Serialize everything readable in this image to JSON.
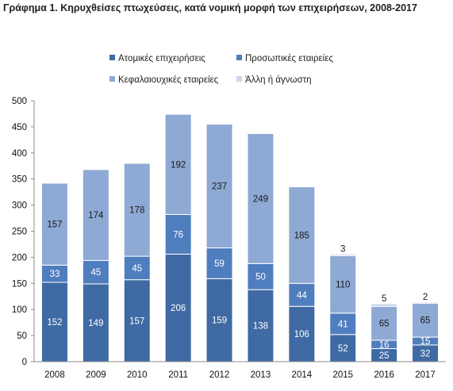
{
  "chart_data": {
    "type": "bar",
    "stacked": true,
    "title": "Γράφημα 1. Κηρυχθείσες πτωχεύσεις, κατά νομική μορφή των επιχειρήσεων, 2008-2017",
    "categories": [
      "2008",
      "2009",
      "2010",
      "2011",
      "2012",
      "2013",
      "2014",
      "2015",
      "2016",
      "2017"
    ],
    "series": [
      {
        "name": "Ατομικές επιχειρήσεις",
        "color": "#3f6aa3",
        "values": [
          152,
          149,
          157,
          206,
          159,
          138,
          106,
          52,
          25,
          32
        ],
        "labels": [
          "152",
          "149",
          "157",
          "206",
          "159",
          "138",
          "106",
          "52",
          "25",
          "32"
        ]
      },
      {
        "name": "Προσωπικές εταιρείες",
        "color": "#4f7ebe",
        "values": [
          33,
          45,
          45,
          76,
          59,
          50,
          44,
          41,
          16,
          15
        ],
        "labels": [
          "33",
          "45",
          "45",
          "76",
          "59",
          "50",
          "44",
          "41",
          "16",
          "15"
        ]
      },
      {
        "name": "Κεφαλαιουχικές εταιρείες",
        "color": "#8ea9d4",
        "values": [
          157,
          174,
          178,
          192,
          237,
          249,
          185,
          110,
          65,
          65
        ],
        "labels": [
          "157",
          "174",
          "178",
          "192",
          "237",
          "249",
          "185",
          "110",
          "65",
          "65"
        ]
      },
      {
        "name": "Άλλη ή άγνωστη",
        "color": "#c8d6ec",
        "values": [
          0,
          0,
          0,
          0,
          0,
          0,
          0,
          3,
          5,
          2
        ],
        "labels": [
          "",
          "",
          "",
          "",
          "",
          "",
          "",
          "3",
          "5",
          "2"
        ]
      }
    ],
    "ylim": [
      0,
      500
    ],
    "yticks": [
      0,
      50,
      100,
      150,
      200,
      250,
      300,
      350,
      400,
      450,
      500
    ],
    "grid": false,
    "legend": "top"
  }
}
